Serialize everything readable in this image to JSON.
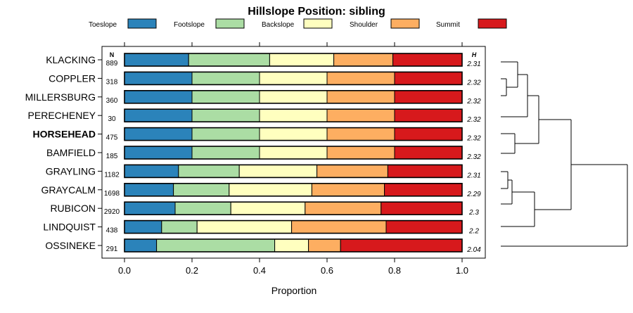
{
  "chart_data": {
    "type": "bar",
    "stacked": true,
    "orientation": "horizontal",
    "title": "Hillslope Position: sibling",
    "xlabel": "Proportion",
    "xlim": [
      0,
      1
    ],
    "x_ticks": [
      0.0,
      0.2,
      0.4,
      0.6,
      0.8,
      1.0
    ],
    "x_tick_labels": [
      "0.0",
      "0.2",
      "0.4",
      "0.6",
      "0.8",
      "1.0"
    ],
    "n_header": "N",
    "h_header": "H",
    "highlight": "HORSEHEAD",
    "legend": [
      {
        "name": "Toeslope",
        "color": "#2B83BA"
      },
      {
        "name": "Footslope",
        "color": "#ABDDA4"
      },
      {
        "name": "Backslope",
        "color": "#FFFFBF"
      },
      {
        "name": "Shoulder",
        "color": "#FDAE61"
      },
      {
        "name": "Summit",
        "color": "#D7191C"
      }
    ],
    "rows": [
      {
        "label": "KLACKING",
        "n": "889",
        "h": "2.31",
        "values": [
          0.19,
          0.24,
          0.19,
          0.175,
          0.205
        ]
      },
      {
        "label": "COPPLER",
        "n": "318",
        "h": "2.32",
        "values": [
          0.2,
          0.2,
          0.2,
          0.2,
          0.2
        ]
      },
      {
        "label": "MILLERSBURG",
        "n": "360",
        "h": "2.32",
        "values": [
          0.2,
          0.2,
          0.2,
          0.2,
          0.2
        ]
      },
      {
        "label": "PERECHENEY",
        "n": "30",
        "h": "2.32",
        "values": [
          0.2,
          0.2,
          0.2,
          0.2,
          0.2
        ]
      },
      {
        "label": "HORSEHEAD",
        "n": "475",
        "h": "2.32",
        "values": [
          0.2,
          0.2,
          0.2,
          0.2,
          0.2
        ]
      },
      {
        "label": "BAMFIELD",
        "n": "185",
        "h": "2.32",
        "values": [
          0.2,
          0.2,
          0.2,
          0.2,
          0.2
        ]
      },
      {
        "label": "GRAYLING",
        "n": "1182",
        "h": "2.31",
        "values": [
          0.16,
          0.18,
          0.23,
          0.21,
          0.22
        ]
      },
      {
        "label": "GRAYCALM",
        "n": "1698",
        "h": "2.29",
        "values": [
          0.145,
          0.165,
          0.245,
          0.215,
          0.23
        ]
      },
      {
        "label": "RUBICON",
        "n": "2920",
        "h": "2.3",
        "values": [
          0.15,
          0.165,
          0.22,
          0.225,
          0.24
        ]
      },
      {
        "label": "LINDQUIST",
        "n": "438",
        "h": "2.2",
        "values": [
          0.11,
          0.105,
          0.28,
          0.28,
          0.225
        ]
      },
      {
        "label": "OSSINEKE",
        "n": "291",
        "h": "2.04",
        "values": [
          0.095,
          0.35,
          0.1,
          0.095,
          0.36
        ]
      }
    ]
  }
}
